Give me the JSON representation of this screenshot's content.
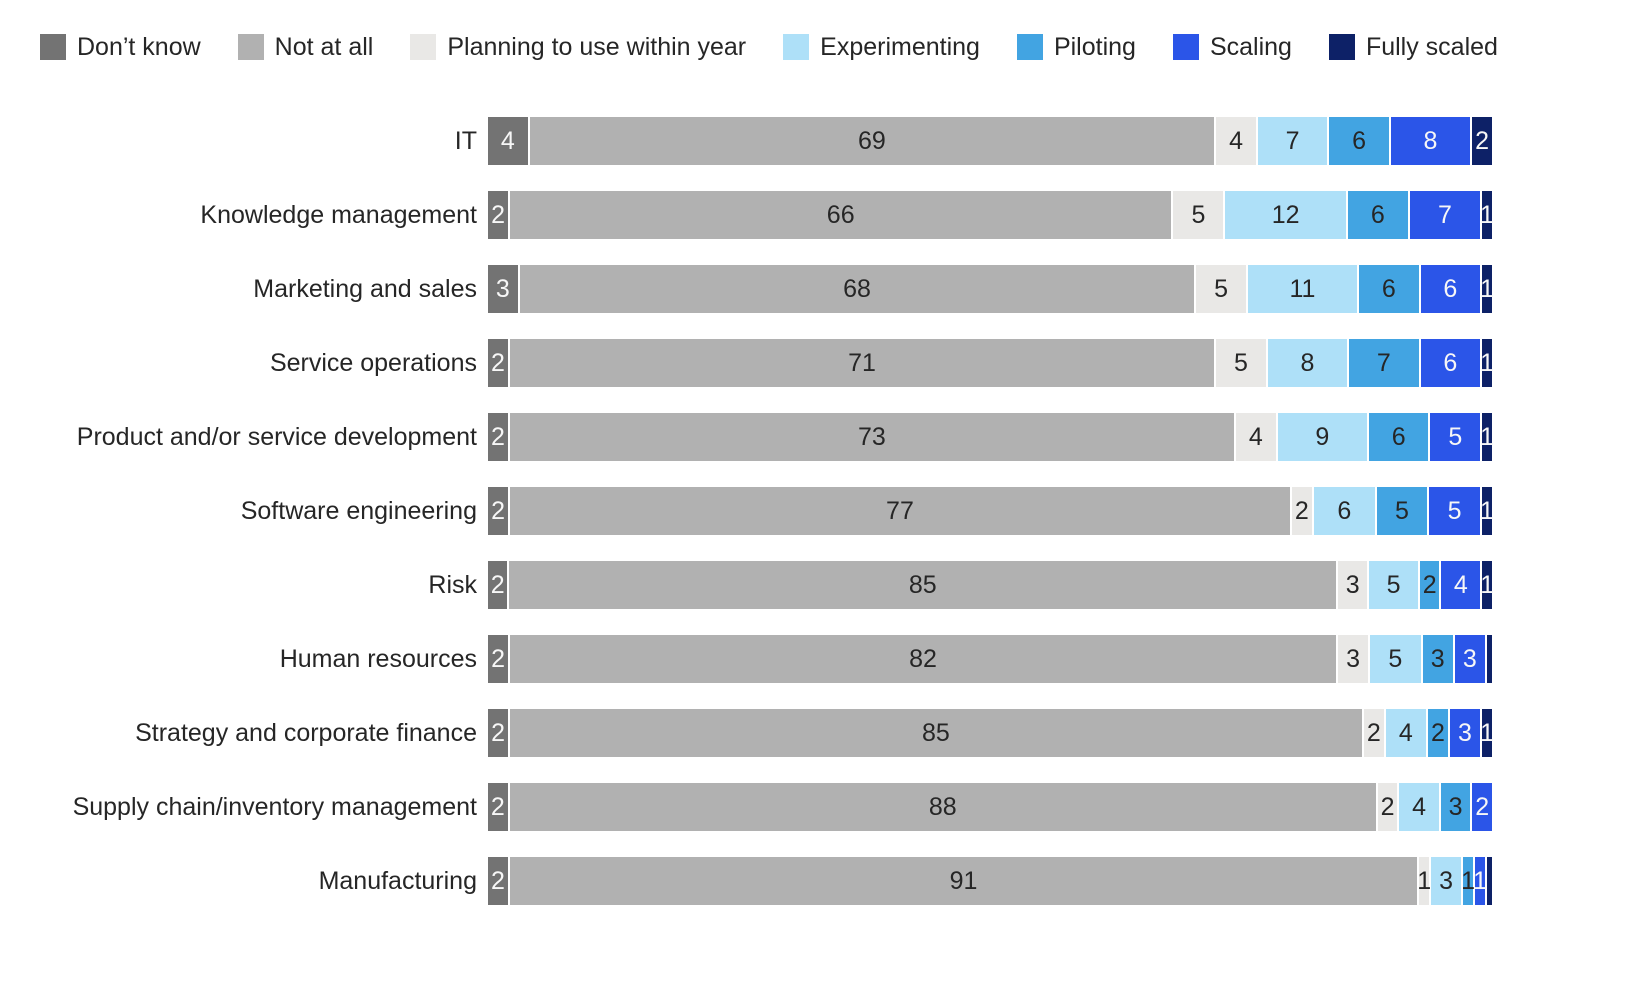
{
  "chart_data": {
    "type": "bar",
    "orientation": "horizontal",
    "stacked": true,
    "value_unit": "percent of respondents",
    "legend_position": "top-left",
    "grid": false,
    "axis_labels_shown": false,
    "series": [
      {
        "name": "Don’t know",
        "color": "#737373",
        "label_color": "#f7f7f7"
      },
      {
        "name": "Not at all",
        "color": "#b1b1b1",
        "label_color": "#262626"
      },
      {
        "name": "Planning to use within year",
        "color": "#e9e8e6",
        "label_color": "#262626"
      },
      {
        "name": "Experimenting",
        "color": "#aee0f8",
        "label_color": "#262626"
      },
      {
        "name": "Piloting",
        "color": "#42a4e2",
        "label_color": "#262626"
      },
      {
        "name": "Scaling",
        "color": "#2b55e8",
        "label_color": "#f7f7f7"
      },
      {
        "name": "Fully scaled",
        "color": "#0d2167",
        "label_color": "#f7f7f7"
      }
    ],
    "categories": [
      "IT",
      "Knowledge management",
      "Marketing and sales",
      "Service operations",
      "Product and/or service development",
      "Software engineering",
      "Risk",
      "Human resources",
      "Strategy and corporate finance",
      "Supply chain/inventory management",
      "Manufacturing"
    ],
    "rows": [
      {
        "category": "IT",
        "values": [
          4,
          69,
          4,
          7,
          6,
          8,
          2
        ],
        "labels": [
          "4",
          "69",
          "4",
          "7",
          "6",
          "8",
          "2"
        ]
      },
      {
        "category": "Knowledge management",
        "values": [
          2,
          66,
          5,
          12,
          6,
          7,
          1
        ],
        "labels": [
          "2",
          "66",
          "5",
          "12",
          "6",
          "7",
          "1"
        ]
      },
      {
        "category": "Marketing and sales",
        "values": [
          3,
          68,
          5,
          11,
          6,
          6,
          1
        ],
        "labels": [
          "3",
          "68",
          "5",
          "11",
          "6",
          "6",
          "1"
        ]
      },
      {
        "category": "Service operations",
        "values": [
          2,
          71,
          5,
          8,
          7,
          6,
          1
        ],
        "labels": [
          "2",
          "71",
          "5",
          "8",
          "7",
          "6",
          "1"
        ]
      },
      {
        "category": "Product and/or service development",
        "values": [
          2,
          73,
          4,
          9,
          6,
          5,
          1
        ],
        "labels": [
          "2",
          "73",
          "4",
          "9",
          "6",
          "5",
          "1"
        ]
      },
      {
        "category": "Software engineering",
        "values": [
          2,
          77,
          2,
          6,
          5,
          5,
          1
        ],
        "labels": [
          "2",
          "77",
          "2",
          "6",
          "5",
          "5",
          "1"
        ]
      },
      {
        "category": "Risk",
        "values": [
          2,
          85,
          3,
          5,
          2,
          4,
          1
        ],
        "labels": [
          "2",
          "85",
          "3",
          "5",
          "2",
          "4",
          "1"
        ]
      },
      {
        "category": "Human resources",
        "values": [
          2,
          82,
          3,
          5,
          3,
          3,
          0.5
        ],
        "labels": [
          "2",
          "82",
          "3",
          "5",
          "3",
          "3",
          ""
        ]
      },
      {
        "category": "Strategy and corporate finance",
        "values": [
          2,
          85,
          2,
          4,
          2,
          3,
          1
        ],
        "labels": [
          "2",
          "85",
          "2",
          "4",
          "2",
          "3",
          "1"
        ]
      },
      {
        "category": "Supply chain/inventory management",
        "values": [
          2,
          88,
          2,
          4,
          3,
          2,
          0
        ],
        "labels": [
          "2",
          "88",
          "2",
          "4",
          "3",
          "2",
          ""
        ]
      },
      {
        "category": "Manufacturing",
        "values": [
          2,
          91,
          1,
          3,
          1,
          1,
          0.5
        ],
        "labels": [
          "2",
          "91",
          "1",
          "3",
          "1",
          "1",
          ""
        ]
      }
    ]
  }
}
